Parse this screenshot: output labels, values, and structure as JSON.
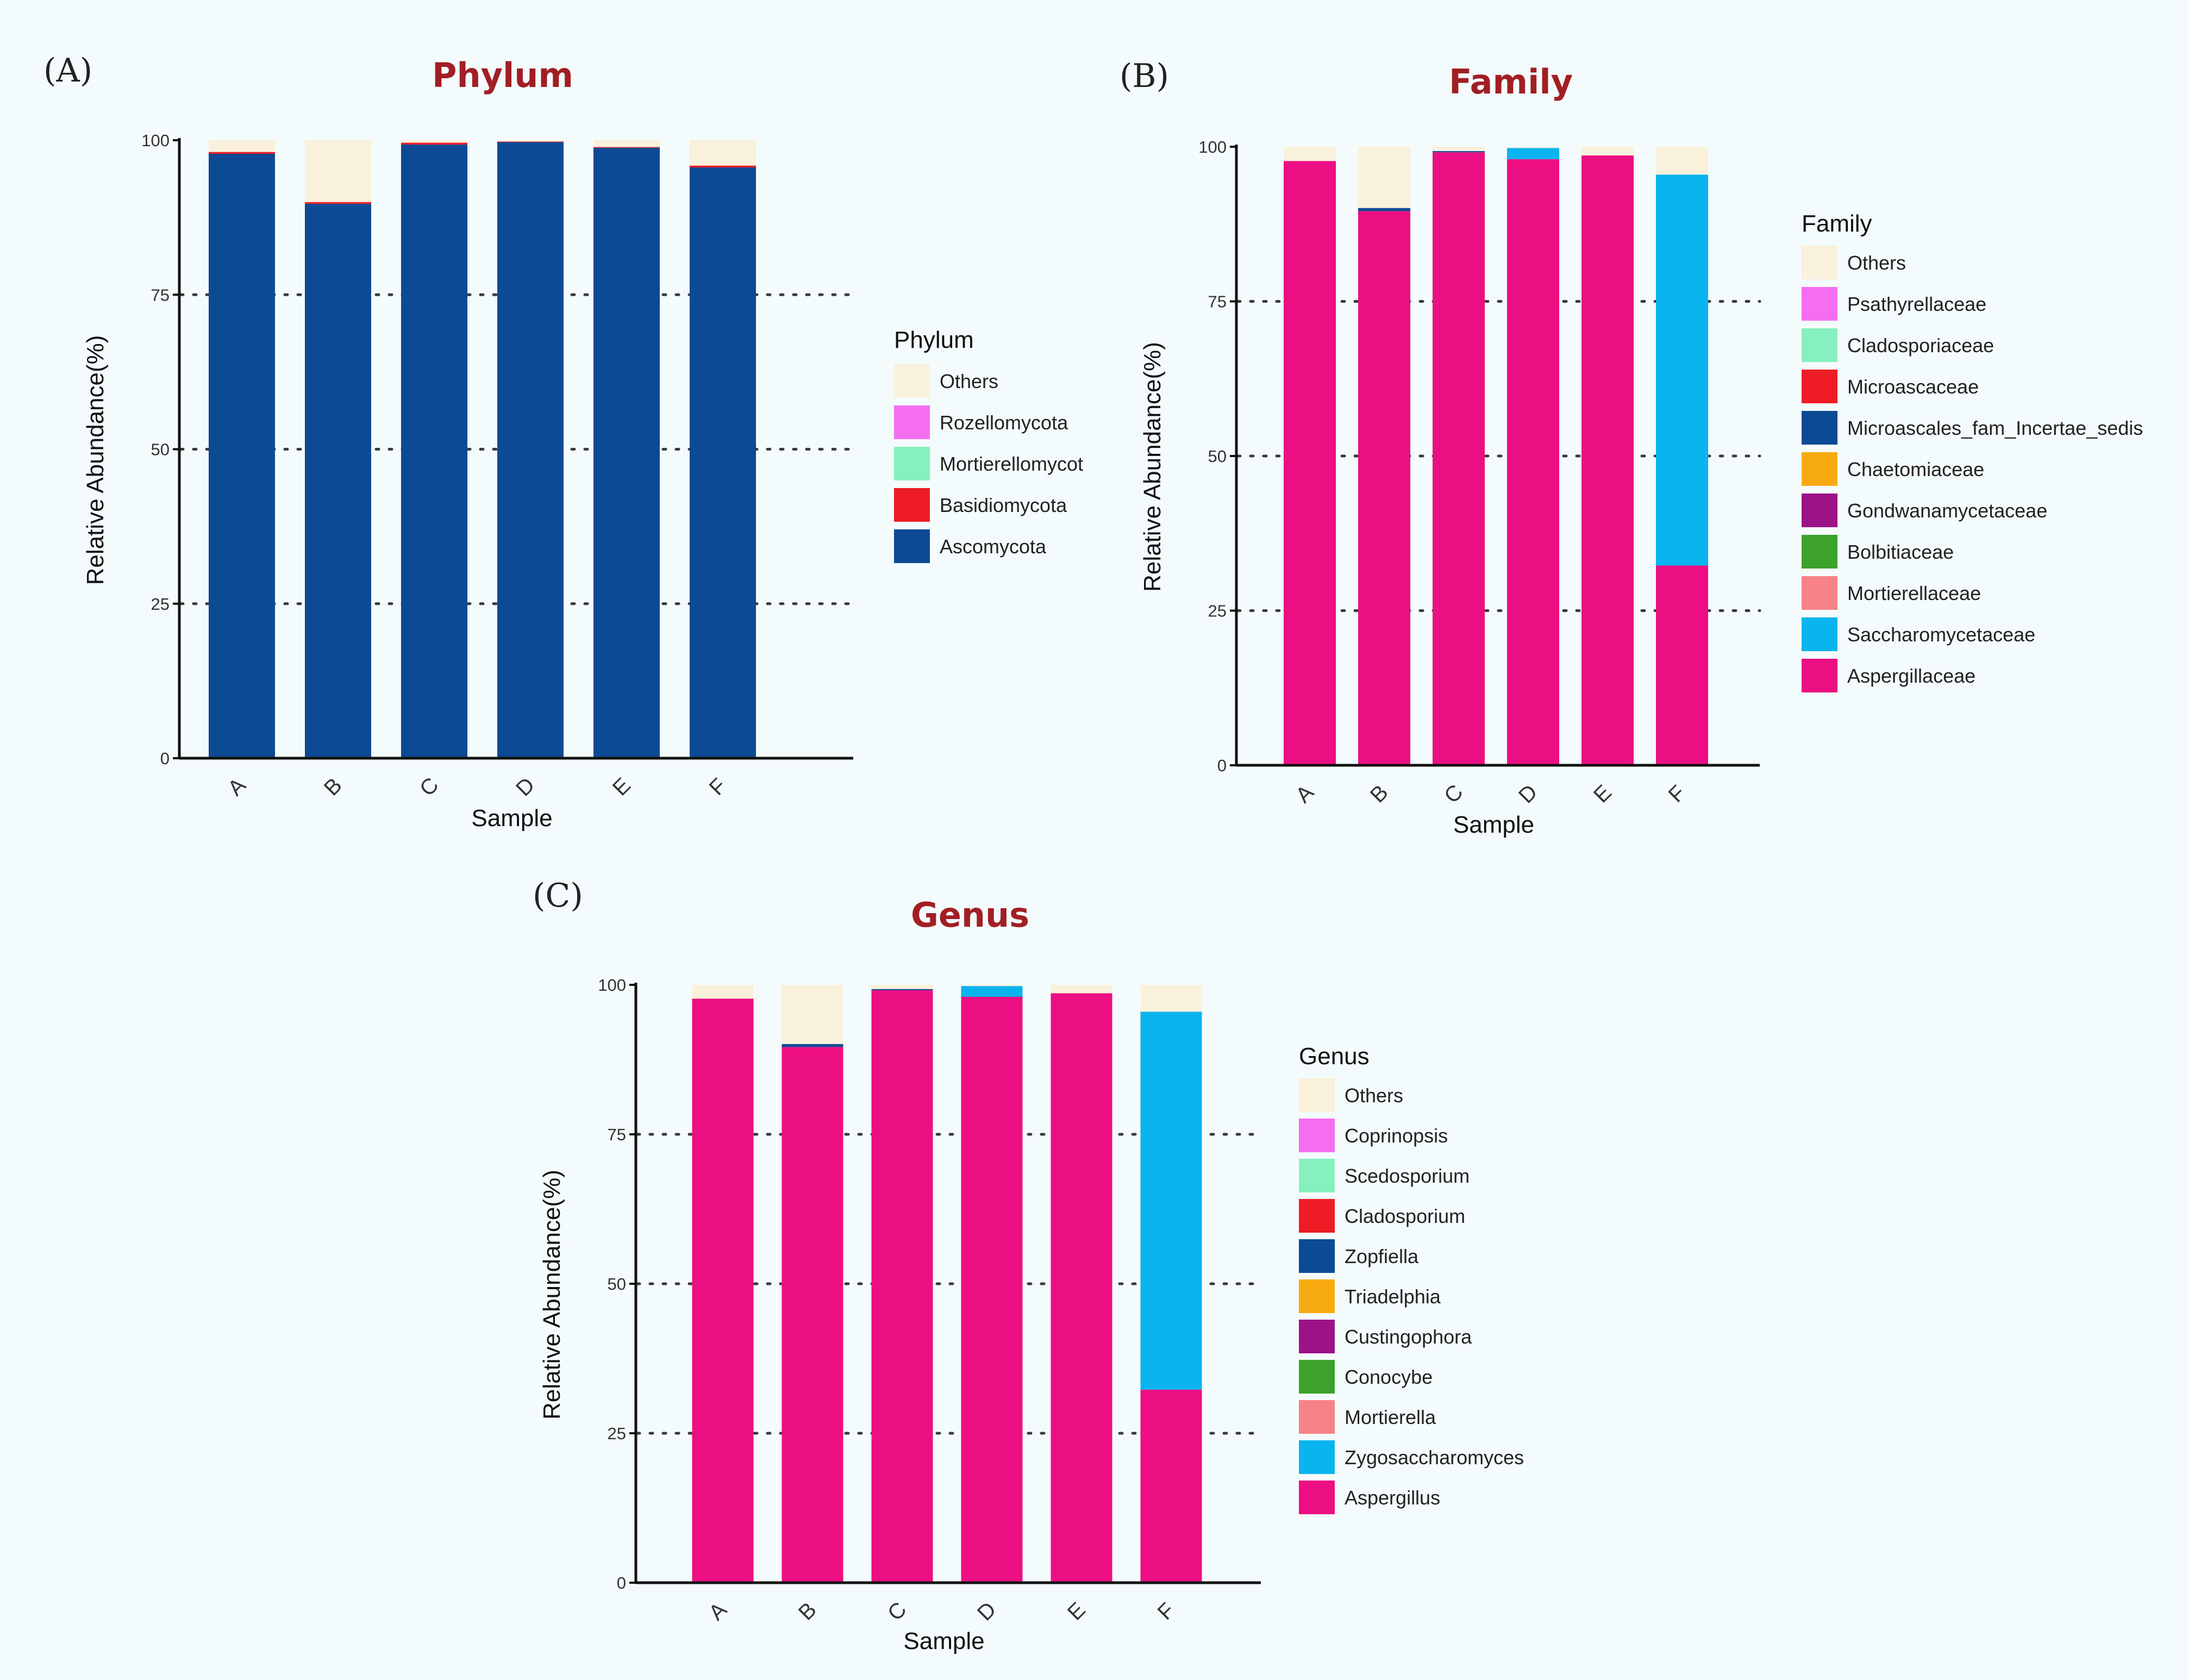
{
  "chart_data": [
    {
      "panel": "(A)",
      "type": "bar",
      "stacked": true,
      "title": "Phylum",
      "xlabel": "Sample",
      "ylabel": "Relative Abundance(%)",
      "ylim": [
        0,
        100
      ],
      "yticks": [
        0,
        25,
        50,
        75,
        100
      ],
      "gridlines": "dotted at 25, 50, 75",
      "categories": [
        "A",
        "B",
        "C",
        "D",
        "E",
        "F"
      ],
      "legend_title": "Phylum",
      "legend_position": "right",
      "series": [
        {
          "name": "Ascomycota",
          "color": "#0c4a94",
          "values": [
            97.8,
            89.7,
            99.3,
            99.7,
            98.8,
            95.6
          ]
        },
        {
          "name": "Basidiomycota",
          "color": "#ee1c24",
          "values": [
            0.3,
            0.3,
            0.3,
            0.1,
            0.1,
            0.3
          ]
        },
        {
          "name": "Mortierellomycot",
          "color": "#86f0be",
          "values": [
            0,
            0,
            0,
            0,
            0,
            0
          ]
        },
        {
          "name": "Rozellomycota",
          "color": "#f66ef0",
          "values": [
            0,
            0,
            0,
            0,
            0,
            0
          ]
        },
        {
          "name": "Others",
          "color": "#faf1dc",
          "values": [
            1.9,
            10.0,
            0.4,
            0.2,
            1.1,
            4.1
          ]
        }
      ]
    },
    {
      "panel": "(B)",
      "type": "bar",
      "stacked": true,
      "title": "Family",
      "xlabel": "Sample",
      "ylabel": "Relative Abundance(%)",
      "ylim": [
        0,
        100
      ],
      "yticks": [
        0,
        25,
        50,
        75,
        100
      ],
      "gridlines": "dotted at 25, 50, 75",
      "categories": [
        "A",
        "B",
        "C",
        "D",
        "E",
        "F"
      ],
      "legend_title": "Family",
      "legend_position": "right",
      "series": [
        {
          "name": "Aspergillaceae",
          "color": "#ec0f83",
          "values": [
            97.7,
            89.6,
            99.1,
            98.0,
            98.6,
            32.3
          ]
        },
        {
          "name": "Saccharomycetaceae",
          "color": "#09b4ef",
          "values": [
            0,
            0,
            0,
            1.8,
            0,
            63.2
          ]
        },
        {
          "name": "Mortierellaceae",
          "color": "#f78386",
          "values": [
            0,
            0,
            0,
            0,
            0,
            0
          ]
        },
        {
          "name": "Bolbitiaceae",
          "color": "#3ca22b",
          "values": [
            0,
            0,
            0,
            0,
            0,
            0
          ]
        },
        {
          "name": "Gondwanamycetaceae",
          "color": "#9c1287",
          "values": [
            0,
            0,
            0,
            0,
            0,
            0
          ]
        },
        {
          "name": "Chaetomiaceae",
          "color": "#f8ab11",
          "values": [
            0,
            0,
            0,
            0,
            0,
            0
          ]
        },
        {
          "name": "Microascales_fam_Incertae_sedis",
          "color": "#0c4a94",
          "values": [
            0,
            0.5,
            0.2,
            0,
            0,
            0
          ]
        },
        {
          "name": "Microascaceae",
          "color": "#ee1c24",
          "values": [
            0,
            0,
            0,
            0,
            0,
            0
          ]
        },
        {
          "name": "Cladosporiaceae",
          "color": "#86f0be",
          "values": [
            0,
            0,
            0,
            0,
            0,
            0
          ]
        },
        {
          "name": "Psathyrellaceae",
          "color": "#f66ef0",
          "values": [
            0,
            0,
            0,
            0,
            0,
            0
          ]
        },
        {
          "name": "Others",
          "color": "#faf1dc",
          "values": [
            2.3,
            9.9,
            0.7,
            0.2,
            1.4,
            4.5
          ]
        }
      ]
    },
    {
      "panel": "(C)",
      "type": "bar",
      "stacked": true,
      "title": "Genus",
      "xlabel": "Sample",
      "ylabel": "Relative Abundance(%)",
      "ylim": [
        0,
        100
      ],
      "yticks": [
        0,
        25,
        50,
        75,
        100
      ],
      "gridlines": "dotted at 25, 50, 75",
      "categories": [
        "A",
        "B",
        "C",
        "D",
        "E",
        "F"
      ],
      "legend_title": "Genus",
      "legend_position": "right",
      "series": [
        {
          "name": "Aspergillus",
          "color": "#ec0f83",
          "values": [
            97.7,
            89.6,
            99.1,
            98.0,
            98.6,
            32.3
          ]
        },
        {
          "name": "Zygosaccharomyces",
          "color": "#09b4ef",
          "values": [
            0,
            0,
            0,
            1.8,
            0,
            63.2
          ]
        },
        {
          "name": "Mortierella",
          "color": "#f78386",
          "values": [
            0,
            0,
            0,
            0,
            0,
            0
          ]
        },
        {
          "name": "Conocybe",
          "color": "#3ca22b",
          "values": [
            0,
            0,
            0,
            0,
            0,
            0
          ]
        },
        {
          "name": "Custingophora",
          "color": "#9c1287",
          "values": [
            0,
            0,
            0,
            0,
            0,
            0
          ]
        },
        {
          "name": "Triadelphia",
          "color": "#f8ab11",
          "values": [
            0,
            0,
            0,
            0,
            0,
            0
          ]
        },
        {
          "name": "Zopfiella",
          "color": "#0c4a94",
          "values": [
            0,
            0.5,
            0.2,
            0,
            0,
            0
          ]
        },
        {
          "name": "Cladosporium",
          "color": "#ee1c24",
          "values": [
            0,
            0,
            0,
            0,
            0,
            0
          ]
        },
        {
          "name": "Scedosporium",
          "color": "#86f0be",
          "values": [
            0,
            0,
            0,
            0,
            0,
            0
          ]
        },
        {
          "name": "Coprinopsis",
          "color": "#f66ef0",
          "values": [
            0,
            0,
            0,
            0,
            0,
            0
          ]
        },
        {
          "name": "Others",
          "color": "#faf1dc",
          "values": [
            2.3,
            9.9,
            0.7,
            0.2,
            1.4,
            4.5
          ]
        }
      ]
    }
  ]
}
